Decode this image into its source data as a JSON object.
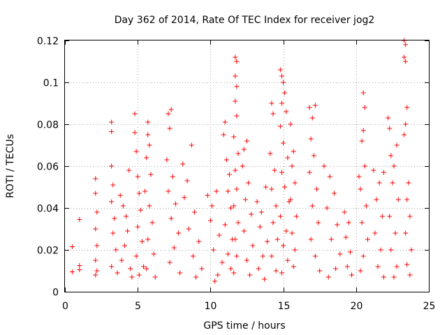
{
  "chart_data": {
    "type": "scatter",
    "title": "Day 362 of 2014, Rate Of TEC Index for receiver jog2",
    "xlabel": "GPS time / hours",
    "ylabel": "ROTI / TECUs",
    "xlim": [
      0,
      25
    ],
    "ylim": [
      0,
      0.12
    ],
    "xticks": [
      0,
      5,
      10,
      15,
      20,
      25
    ],
    "xtick_labels": [
      "0",
      "5",
      "10",
      "15",
      "20",
      "25"
    ],
    "yticks": [
      0,
      0.02,
      0.04,
      0.06,
      0.08,
      0.1,
      0.12
    ],
    "ytick_labels": [
      "0",
      "0.02",
      "0.04",
      "0.06",
      "0.08",
      "0.1",
      "0.12"
    ],
    "grid": true,
    "marker": "+",
    "color": "#ff0000",
    "series": [
      {
        "name": "jog2",
        "points": [
          [
            0.5,
            0.0215
          ],
          [
            0.5,
            0.0095
          ],
          [
            1.0,
            0.0345
          ],
          [
            1.0,
            0.0125
          ],
          [
            1.0,
            0.0105
          ],
          [
            2.1,
            0.054
          ],
          [
            2.1,
            0.047
          ],
          [
            2.2,
            0.038
          ],
          [
            2.1,
            0.03
          ],
          [
            2.2,
            0.022
          ],
          [
            2.1,
            0.015
          ],
          [
            2.2,
            0.01
          ],
          [
            2.1,
            0.008
          ],
          [
            3.2,
            0.081
          ],
          [
            3.2,
            0.0765
          ],
          [
            3.2,
            0.06
          ],
          [
            3.3,
            0.051
          ],
          [
            3.2,
            0.043
          ],
          [
            3.4,
            0.035
          ],
          [
            3.3,
            0.028
          ],
          [
            3.5,
            0.02
          ],
          [
            3.2,
            0.012
          ],
          [
            3.6,
            0.009
          ],
          [
            3.8,
            0.046
          ],
          [
            4.0,
            0.041
          ],
          [
            4.2,
            0.036
          ],
          [
            4.4,
            0.058
          ],
          [
            4.3,
            0.029
          ],
          [
            4.1,
            0.022
          ],
          [
            3.9,
            0.015
          ],
          [
            4.5,
            0.011
          ],
          [
            4.6,
            0.007
          ],
          [
            4.8,
            0.085
          ],
          [
            4.8,
            0.076
          ],
          [
            4.9,
            0.067
          ],
          [
            5.0,
            0.055
          ],
          [
            5.1,
            0.047
          ],
          [
            5.2,
            0.039
          ],
          [
            5.0,
            0.031
          ],
          [
            5.3,
            0.024
          ],
          [
            4.9,
            0.017
          ],
          [
            5.4,
            0.012
          ],
          [
            5.1,
            0.008
          ],
          [
            5.7,
            0.081
          ],
          [
            5.7,
            0.075
          ],
          [
            5.8,
            0.07
          ],
          [
            5.6,
            0.064
          ],
          [
            5.9,
            0.056
          ],
          [
            5.5,
            0.048
          ],
          [
            5.8,
            0.041
          ],
          [
            6.0,
            0.033
          ],
          [
            5.7,
            0.025
          ],
          [
            6.1,
            0.018
          ],
          [
            5.6,
            0.011
          ],
          [
            6.2,
            0.007
          ],
          [
            7.1,
            0.085
          ],
          [
            7.3,
            0.087
          ],
          [
            7.0,
            0.063
          ],
          [
            7.2,
            0.078
          ],
          [
            7.4,
            0.055
          ],
          [
            7.1,
            0.048
          ],
          [
            7.6,
            0.042
          ],
          [
            7.3,
            0.035
          ],
          [
            7.8,
            0.028
          ],
          [
            7.5,
            0.021
          ],
          [
            7.2,
            0.014
          ],
          [
            7.9,
            0.009
          ],
          [
            8.1,
            0.061
          ],
          [
            8.4,
            0.053
          ],
          [
            8.7,
            0.07
          ],
          [
            8.2,
            0.045
          ],
          [
            8.9,
            0.038
          ],
          [
            8.5,
            0.03
          ],
          [
            9.2,
            0.024
          ],
          [
            8.8,
            0.017
          ],
          [
            9.4,
            0.011
          ],
          [
            9.0,
            0.007
          ],
          [
            9.8,
            0.046
          ],
          [
            10.1,
            0.041
          ],
          [
            10.4,
            0.048
          ],
          [
            10.0,
            0.034
          ],
          [
            10.6,
            0.027
          ],
          [
            10.2,
            0.02
          ],
          [
            10.8,
            0.014
          ],
          [
            10.5,
            0.008
          ],
          [
            10.3,
            0.005
          ],
          [
            11.0,
            0.081
          ],
          [
            10.9,
            0.075
          ],
          [
            11.1,
            0.063
          ],
          [
            11.3,
            0.056
          ],
          [
            11.2,
            0.048
          ],
          [
            11.4,
            0.04
          ],
          [
            11.0,
            0.032
          ],
          [
            11.5,
            0.025
          ],
          [
            11.2,
            0.018
          ],
          [
            11.4,
            0.011
          ],
          [
            11.7,
            0.112
          ],
          [
            11.8,
            0.11
          ],
          [
            11.7,
            0.103
          ],
          [
            11.8,
            0.098
          ],
          [
            11.7,
            0.091
          ],
          [
            11.8,
            0.084
          ],
          [
            11.6,
            0.074
          ],
          [
            11.9,
            0.066
          ],
          [
            11.7,
            0.058
          ],
          [
            11.8,
            0.049
          ],
          [
            11.6,
            0.041
          ],
          [
            11.9,
            0.033
          ],
          [
            11.7,
            0.025
          ],
          [
            11.8,
            0.017
          ],
          [
            11.6,
            0.009
          ],
          [
            12.3,
            0.068
          ],
          [
            12.5,
            0.072
          ],
          [
            12.2,
            0.06
          ],
          [
            12.6,
            0.052
          ],
          [
            12.4,
            0.044
          ],
          [
            12.8,
            0.037
          ],
          [
            12.3,
            0.029
          ],
          [
            12.9,
            0.022
          ],
          [
            12.5,
            0.015
          ],
          [
            12.7,
            0.008
          ],
          [
            13.2,
            0.043
          ],
          [
            13.5,
            0.038
          ],
          [
            13.8,
            0.05
          ],
          [
            13.4,
            0.031
          ],
          [
            13.9,
            0.024
          ],
          [
            13.6,
            0.017
          ],
          [
            13.3,
            0.011
          ],
          [
            13.7,
            0.006
          ],
          [
            14.2,
            0.09
          ],
          [
            14.3,
            0.085
          ],
          [
            14.1,
            0.066
          ],
          [
            14.4,
            0.058
          ],
          [
            14.2,
            0.049
          ],
          [
            14.5,
            0.041
          ],
          [
            14.3,
            0.033
          ],
          [
            14.6,
            0.025
          ],
          [
            14.2,
            0.017
          ],
          [
            14.5,
            0.01
          ],
          [
            14.8,
            0.106
          ],
          [
            14.9,
            0.103
          ],
          [
            15.0,
            0.1
          ],
          [
            15.1,
            0.095
          ],
          [
            14.9,
            0.09
          ],
          [
            15.2,
            0.086
          ],
          [
            14.8,
            0.079
          ],
          [
            15.0,
            0.071
          ],
          [
            15.3,
            0.064
          ],
          [
            14.9,
            0.057
          ],
          [
            15.1,
            0.05
          ],
          [
            15.4,
            0.043
          ],
          [
            14.8,
            0.036
          ],
          [
            15.2,
            0.029
          ],
          [
            15.0,
            0.022
          ],
          [
            15.3,
            0.015
          ],
          [
            14.9,
            0.009
          ],
          [
            15.5,
            0.08
          ],
          [
            15.7,
            0.067
          ],
          [
            15.6,
            0.06
          ],
          [
            15.8,
            0.052
          ],
          [
            15.5,
            0.044
          ],
          [
            15.9,
            0.036
          ],
          [
            15.6,
            0.028
          ],
          [
            15.8,
            0.02
          ],
          [
            15.7,
            0.012
          ],
          [
            16.8,
            0.088
          ],
          [
            17.0,
            0.083
          ],
          [
            16.9,
            0.073
          ],
          [
            17.2,
            0.089
          ],
          [
            17.1,
            0.065
          ],
          [
            16.8,
            0.057
          ],
          [
            17.3,
            0.049
          ],
          [
            17.0,
            0.041
          ],
          [
            17.4,
            0.033
          ],
          [
            16.9,
            0.025
          ],
          [
            17.2,
            0.017
          ],
          [
            17.5,
            0.01
          ],
          [
            17.8,
            0.06
          ],
          [
            18.2,
            0.055
          ],
          [
            18.5,
            0.047
          ],
          [
            18.0,
            0.04
          ],
          [
            18.7,
            0.032
          ],
          [
            18.3,
            0.025
          ],
          [
            18.9,
            0.018
          ],
          [
            18.6,
            0.011
          ],
          [
            18.1,
            0.007
          ],
          [
            19.2,
            0.038
          ],
          [
            19.5,
            0.033
          ],
          [
            19.3,
            0.026
          ],
          [
            19.6,
            0.019
          ],
          [
            19.4,
            0.012
          ],
          [
            19.7,
            0.008
          ],
          [
            20.2,
            0.055
          ],
          [
            20.5,
            0.095
          ],
          [
            20.6,
            0.088
          ],
          [
            20.5,
            0.077
          ],
          [
            20.4,
            0.072
          ],
          [
            20.6,
            0.06
          ],
          [
            20.3,
            0.049
          ],
          [
            20.7,
            0.041
          ],
          [
            20.4,
            0.033
          ],
          [
            20.8,
            0.025
          ],
          [
            20.5,
            0.017
          ],
          [
            20.3,
            0.01
          ],
          [
            21.2,
            0.058
          ],
          [
            21.6,
            0.052
          ],
          [
            21.9,
            0.057
          ],
          [
            21.4,
            0.044
          ],
          [
            21.8,
            0.036
          ],
          [
            21.3,
            0.028
          ],
          [
            21.7,
            0.02
          ],
          [
            21.5,
            0.012
          ],
          [
            21.9,
            0.007
          ],
          [
            22.2,
            0.083
          ],
          [
            22.3,
            0.078
          ],
          [
            22.4,
            0.065
          ],
          [
            22.6,
            0.06
          ],
          [
            22.8,
            0.07
          ],
          [
            22.5,
            0.052
          ],
          [
            22.9,
            0.044
          ],
          [
            22.3,
            0.036
          ],
          [
            22.7,
            0.028
          ],
          [
            22.4,
            0.02
          ],
          [
            22.8,
            0.012
          ],
          [
            22.6,
            0.007
          ],
          [
            23.3,
            0.12
          ],
          [
            23.4,
            0.118
          ],
          [
            23.3,
            0.112
          ],
          [
            23.4,
            0.11
          ],
          [
            23.5,
            0.088
          ],
          [
            23.4,
            0.08
          ],
          [
            23.3,
            0.075
          ],
          [
            23.6,
            0.052
          ],
          [
            23.5,
            0.044
          ],
          [
            23.7,
            0.036
          ],
          [
            23.4,
            0.028
          ],
          [
            23.8,
            0.02
          ],
          [
            23.5,
            0.013
          ],
          [
            23.7,
            0.008
          ]
        ]
      }
    ]
  }
}
